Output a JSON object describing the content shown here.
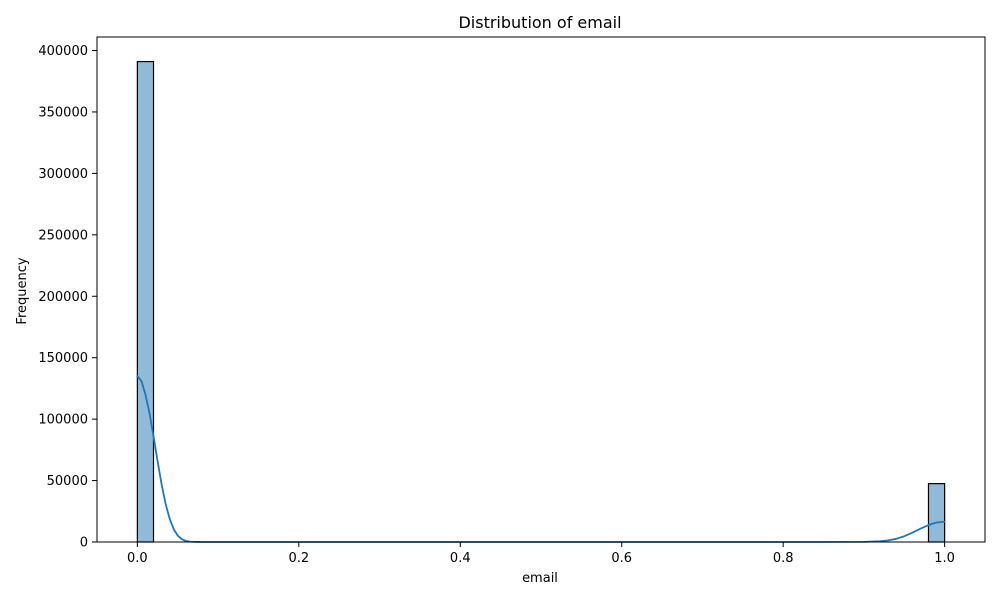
{
  "chart_data": {
    "type": "bar",
    "title": "Distribution of email",
    "xlabel": "email",
    "ylabel": "Frequency",
    "xlim": [
      -0.05,
      1.05
    ],
    "ylim": [
      0,
      411000
    ],
    "x_ticks": [
      0.0,
      0.2,
      0.4,
      0.6,
      0.8,
      1.0
    ],
    "x_tick_labels": [
      "0.0",
      "0.2",
      "0.4",
      "0.6",
      "0.8",
      "1.0"
    ],
    "y_ticks": [
      0,
      50000,
      100000,
      150000,
      200000,
      250000,
      300000,
      350000,
      400000
    ],
    "y_tick_labels": [
      "0",
      "50000",
      "100000",
      "150000",
      "200000",
      "250000",
      "300000",
      "350000",
      "400000"
    ],
    "bins": [
      {
        "x0": 0.0,
        "x1": 0.02,
        "count": 391000
      },
      {
        "x0": 0.98,
        "x1": 1.0,
        "count": 47500
      }
    ],
    "kde": {
      "x": [
        0.0,
        0.005,
        0.01,
        0.015,
        0.02,
        0.025,
        0.03,
        0.035,
        0.04,
        0.045,
        0.05,
        0.055,
        0.06,
        0.065,
        0.07,
        0.075,
        0.08,
        0.09,
        0.1,
        0.2,
        0.4,
        0.6,
        0.8,
        0.9,
        0.92,
        0.93,
        0.94,
        0.95,
        0.96,
        0.97,
        0.98,
        0.99,
        1.0
      ],
      "y": [
        135000,
        131000,
        120000,
        105000,
        86000,
        66000,
        47000,
        31000,
        19000,
        10500,
        5200,
        2300,
        900,
        330,
        110,
        30,
        8,
        0,
        0,
        0,
        0,
        0,
        0,
        100,
        600,
        1300,
        2600,
        4700,
        7600,
        10800,
        13800,
        15900,
        16600
      ]
    },
    "grid": false,
    "colors": {
      "bar_fill": "#1f77b4",
      "bar_opacity": 0.5,
      "bar_edge": "#000000",
      "kde_line": "#1f77b4"
    }
  }
}
